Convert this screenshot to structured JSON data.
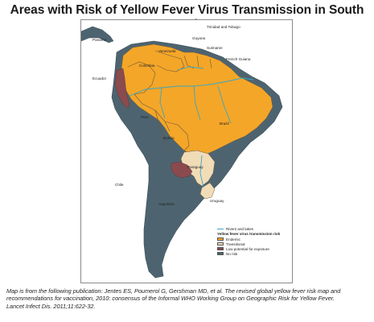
{
  "title": "Areas with Risk of Yellow Fever Virus Transmission in South America",
  "labels": {
    "trinidad": "Trinidad and Tobago",
    "panama": "Panama",
    "guyana": "Guyana",
    "suriname": "Suriname",
    "venezuela": "Venezuela",
    "french_guiana": "French Guiana",
    "colombia": "Colombia",
    "ecuador": "Ecuador",
    "peru": "Peru",
    "brazil": "Brazil",
    "bolivia": "Bolivia",
    "paraguay": "Paraguay",
    "chile": "Chile",
    "argentina": "Argentina",
    "uruguay": "Uruguay"
  },
  "legend": {
    "rivers": "Rivers and lakes",
    "heading": "Yellow fever virus transmission risk",
    "items": [
      {
        "label": "Endemic",
        "color": "#f4a628"
      },
      {
        "label": "Transitional",
        "color": "#f1dcb8"
      },
      {
        "label": "Low potential for exposure",
        "color": "#8a4a4e"
      },
      {
        "label": "No risk",
        "color": "#4d6470"
      }
    ]
  },
  "caption": {
    "line1": "Map is from the following publication: Jentes ES, Poumerol G, Gershman MD, et al. The revised global yellow fever risk map and",
    "line2": "recommendations for vaccination, 2010: consensus of the Informal WHO Working Group on Geographic Risk for Yellow Fever.",
    "line3": "Lancet Infect Dis. 2011;11:622-32."
  },
  "colors": {
    "endemic": "#f4a628",
    "transitional": "#f1dcb8",
    "low": "#8a4a4e",
    "norisk": "#4d6470",
    "river": "#3aa7c2",
    "border": "#6b5a40"
  }
}
